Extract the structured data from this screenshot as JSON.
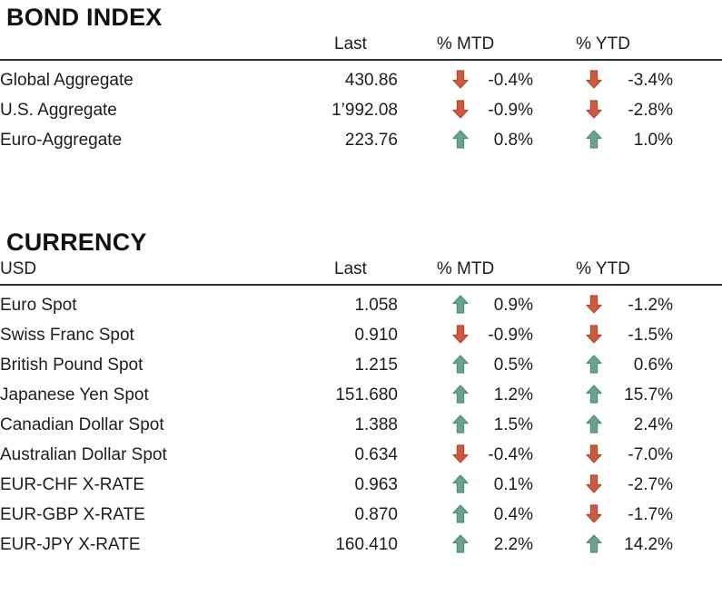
{
  "colors": {
    "up_arrow_fill": "#6aa28d",
    "up_arrow_stroke": "#4f8e7a",
    "down_arrow_fill": "#cb5a40",
    "down_arrow_stroke": "#b04a31",
    "header_rule": "#333333",
    "text": "#1d1d1d",
    "background": "#ffffff"
  },
  "tables": [
    {
      "title": "BOND INDEX",
      "corner_header": "",
      "col_headers": {
        "last": "Last",
        "mtd": "% MTD",
        "ytd": "% YTD"
      },
      "rows": [
        {
          "name": "Global Aggregate",
          "last": "430.86",
          "mtd_dir": "down",
          "mtd": "-0.4%",
          "ytd_dir": "down",
          "ytd": "-3.4%"
        },
        {
          "name": "U.S. Aggregate",
          "last": "1’992.08",
          "mtd_dir": "down",
          "mtd": "-0.9%",
          "ytd_dir": "down",
          "ytd": "-2.8%"
        },
        {
          "name": "Euro-Aggregate",
          "last": "223.76",
          "mtd_dir": "up",
          "mtd": "0.8%",
          "ytd_dir": "up",
          "ytd": "1.0%"
        }
      ]
    },
    {
      "title": "CURRENCY",
      "corner_header": "USD",
      "col_headers": {
        "last": "Last",
        "mtd": "% MTD",
        "ytd": "% YTD"
      },
      "rows": [
        {
          "name": "Euro Spot",
          "last": "1.058",
          "mtd_dir": "up",
          "mtd": "0.9%",
          "ytd_dir": "down",
          "ytd": "-1.2%"
        },
        {
          "name": "Swiss Franc Spot",
          "last": "0.910",
          "mtd_dir": "down",
          "mtd": "-0.9%",
          "ytd_dir": "down",
          "ytd": "-1.5%"
        },
        {
          "name": "British Pound Spot",
          "last": "1.215",
          "mtd_dir": "up",
          "mtd": "0.5%",
          "ytd_dir": "up",
          "ytd": "0.6%"
        },
        {
          "name": "Japanese Yen Spot",
          "last": "151.680",
          "mtd_dir": "up",
          "mtd": "1.2%",
          "ytd_dir": "up",
          "ytd": "15.7%"
        },
        {
          "name": "Canadian Dollar Spot",
          "last": "1.388",
          "mtd_dir": "up",
          "mtd": "1.5%",
          "ytd_dir": "up",
          "ytd": "2.4%"
        },
        {
          "name": "Australian Dollar Spot",
          "last": "0.634",
          "mtd_dir": "down",
          "mtd": "-0.4%",
          "ytd_dir": "down",
          "ytd": "-7.0%"
        },
        {
          "name": "EUR-CHF X-RATE",
          "last": "0.963",
          "mtd_dir": "up",
          "mtd": "0.1%",
          "ytd_dir": "down",
          "ytd": "-2.7%"
        },
        {
          "name": "EUR-GBP X-RATE",
          "last": "0.870",
          "mtd_dir": "up",
          "mtd": "0.4%",
          "ytd_dir": "down",
          "ytd": "-1.7%"
        },
        {
          "name": "EUR-JPY X-RATE",
          "last": "160.410",
          "mtd_dir": "up",
          "mtd": "2.2%",
          "ytd_dir": "up",
          "ytd": "14.2%"
        }
      ]
    }
  ]
}
